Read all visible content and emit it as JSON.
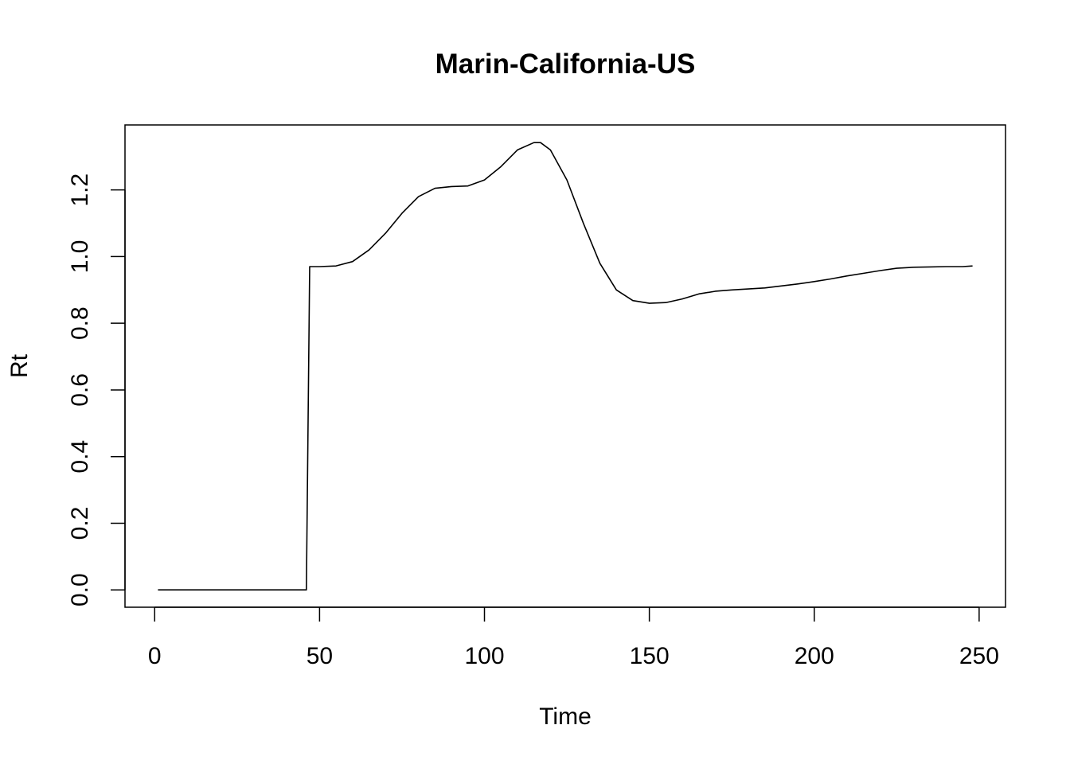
{
  "chart_data": {
    "type": "line",
    "title": "Marin-California-US",
    "xlabel": "Time",
    "ylabel": "Rt",
    "xlim": [
      -9,
      258
    ],
    "ylim": [
      -0.052,
      1.395
    ],
    "xticks": [
      0,
      50,
      100,
      150,
      200,
      250
    ],
    "xtick_labels": [
      "0",
      "50",
      "100",
      "150",
      "200",
      "250"
    ],
    "yticks": [
      0.0,
      0.2,
      0.4,
      0.6,
      0.8,
      1.0,
      1.2
    ],
    "ytick_labels": [
      "0.0",
      "0.2",
      "0.4",
      "0.6",
      "0.8",
      "1.0",
      "1.2"
    ],
    "grid": false,
    "legend": "none",
    "line_color": "#000000",
    "series": [
      {
        "x": [
          1,
          46,
          47,
          50,
          55,
          60,
          65,
          70,
          75,
          80,
          85,
          90,
          95,
          100,
          105,
          110,
          115,
          117,
          120,
          125,
          130,
          135,
          140,
          145,
          150,
          155,
          160,
          165,
          170,
          175,
          180,
          185,
          190,
          195,
          200,
          205,
          210,
          215,
          220,
          225,
          230,
          235,
          240,
          245,
          248
        ],
        "y": [
          0.0,
          0.0,
          0.97,
          0.97,
          0.972,
          0.985,
          1.02,
          1.07,
          1.13,
          1.18,
          1.205,
          1.21,
          1.212,
          1.23,
          1.27,
          1.32,
          1.342,
          1.342,
          1.32,
          1.23,
          1.1,
          0.98,
          0.9,
          0.868,
          0.86,
          0.862,
          0.873,
          0.888,
          0.896,
          0.9,
          0.903,
          0.906,
          0.912,
          0.918,
          0.925,
          0.933,
          0.942,
          0.95,
          0.958,
          0.965,
          0.968,
          0.969,
          0.97,
          0.97,
          0.972
        ]
      }
    ]
  }
}
